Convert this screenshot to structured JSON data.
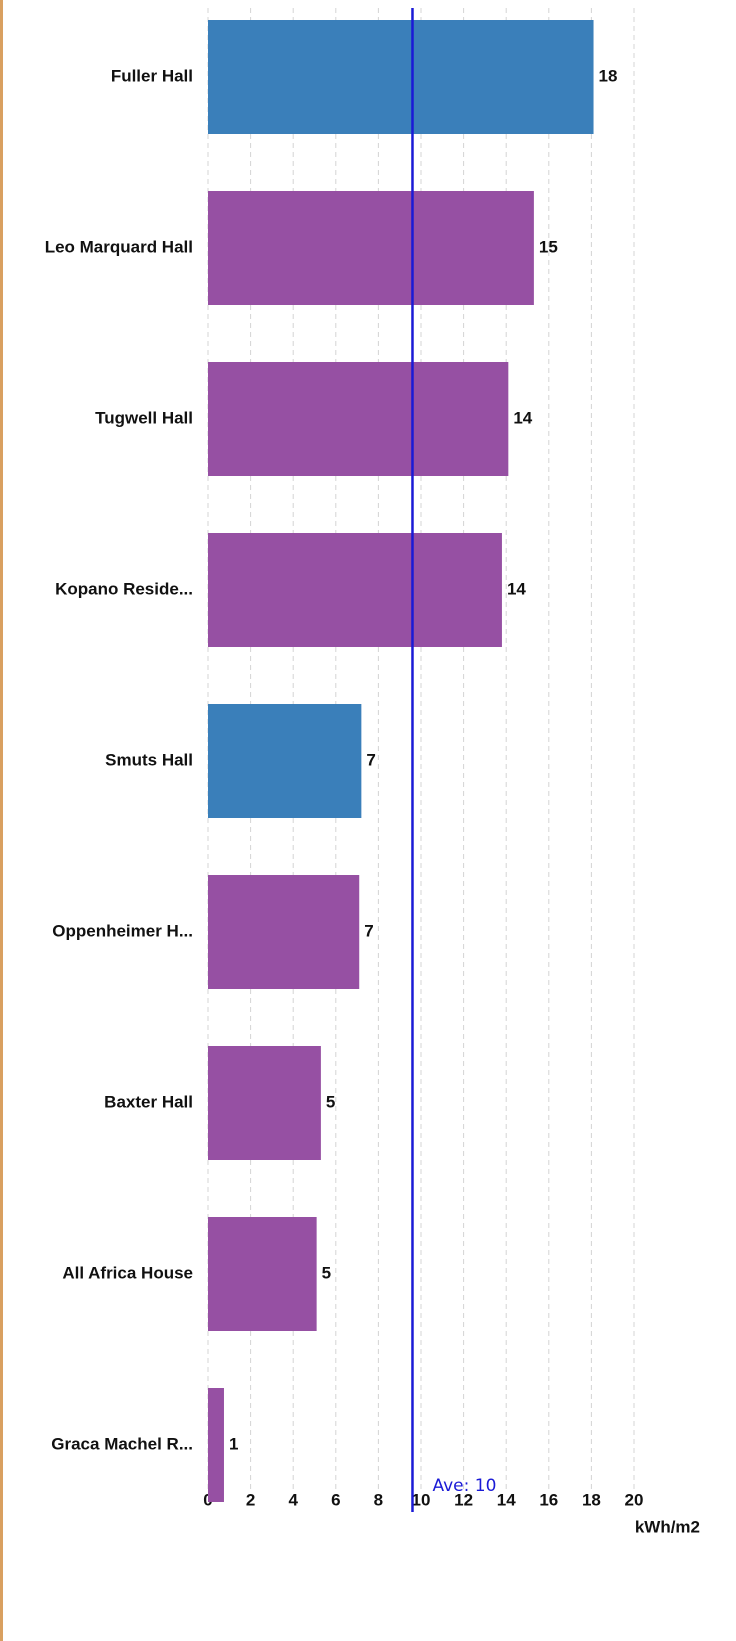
{
  "chart_data": {
    "type": "bar",
    "orientation": "horizontal",
    "categories": [
      "Fuller Hall",
      "Leo Marquard Hall",
      "Tugwell Hall",
      "Kopano Reside...",
      "Smuts Hall",
      "Oppenheimer H...",
      "Baxter Hall",
      "All Africa House",
      "Graca Machel R..."
    ],
    "values": [
      18.1,
      15.3,
      14.1,
      13.8,
      7.2,
      7.1,
      5.3,
      5.1,
      0.75
    ],
    "value_labels": [
      "18",
      "15",
      "14",
      "14",
      "7",
      "7",
      "5",
      "5",
      "1"
    ],
    "colors": [
      "#3a7fba",
      "#9650a3",
      "#9650a3",
      "#9650a3",
      "#3a7fba",
      "#9650a3",
      "#9650a3",
      "#9650a3",
      "#9650a3"
    ],
    "average": {
      "value": 9.6,
      "label": "Ave: 10",
      "color": "#1a1ad6"
    },
    "xlim": [
      0,
      20
    ],
    "xticks": [
      0,
      2,
      4,
      6,
      8,
      10,
      12,
      14,
      16,
      18,
      20
    ],
    "x_label": "kWh/m2",
    "grid": true
  }
}
